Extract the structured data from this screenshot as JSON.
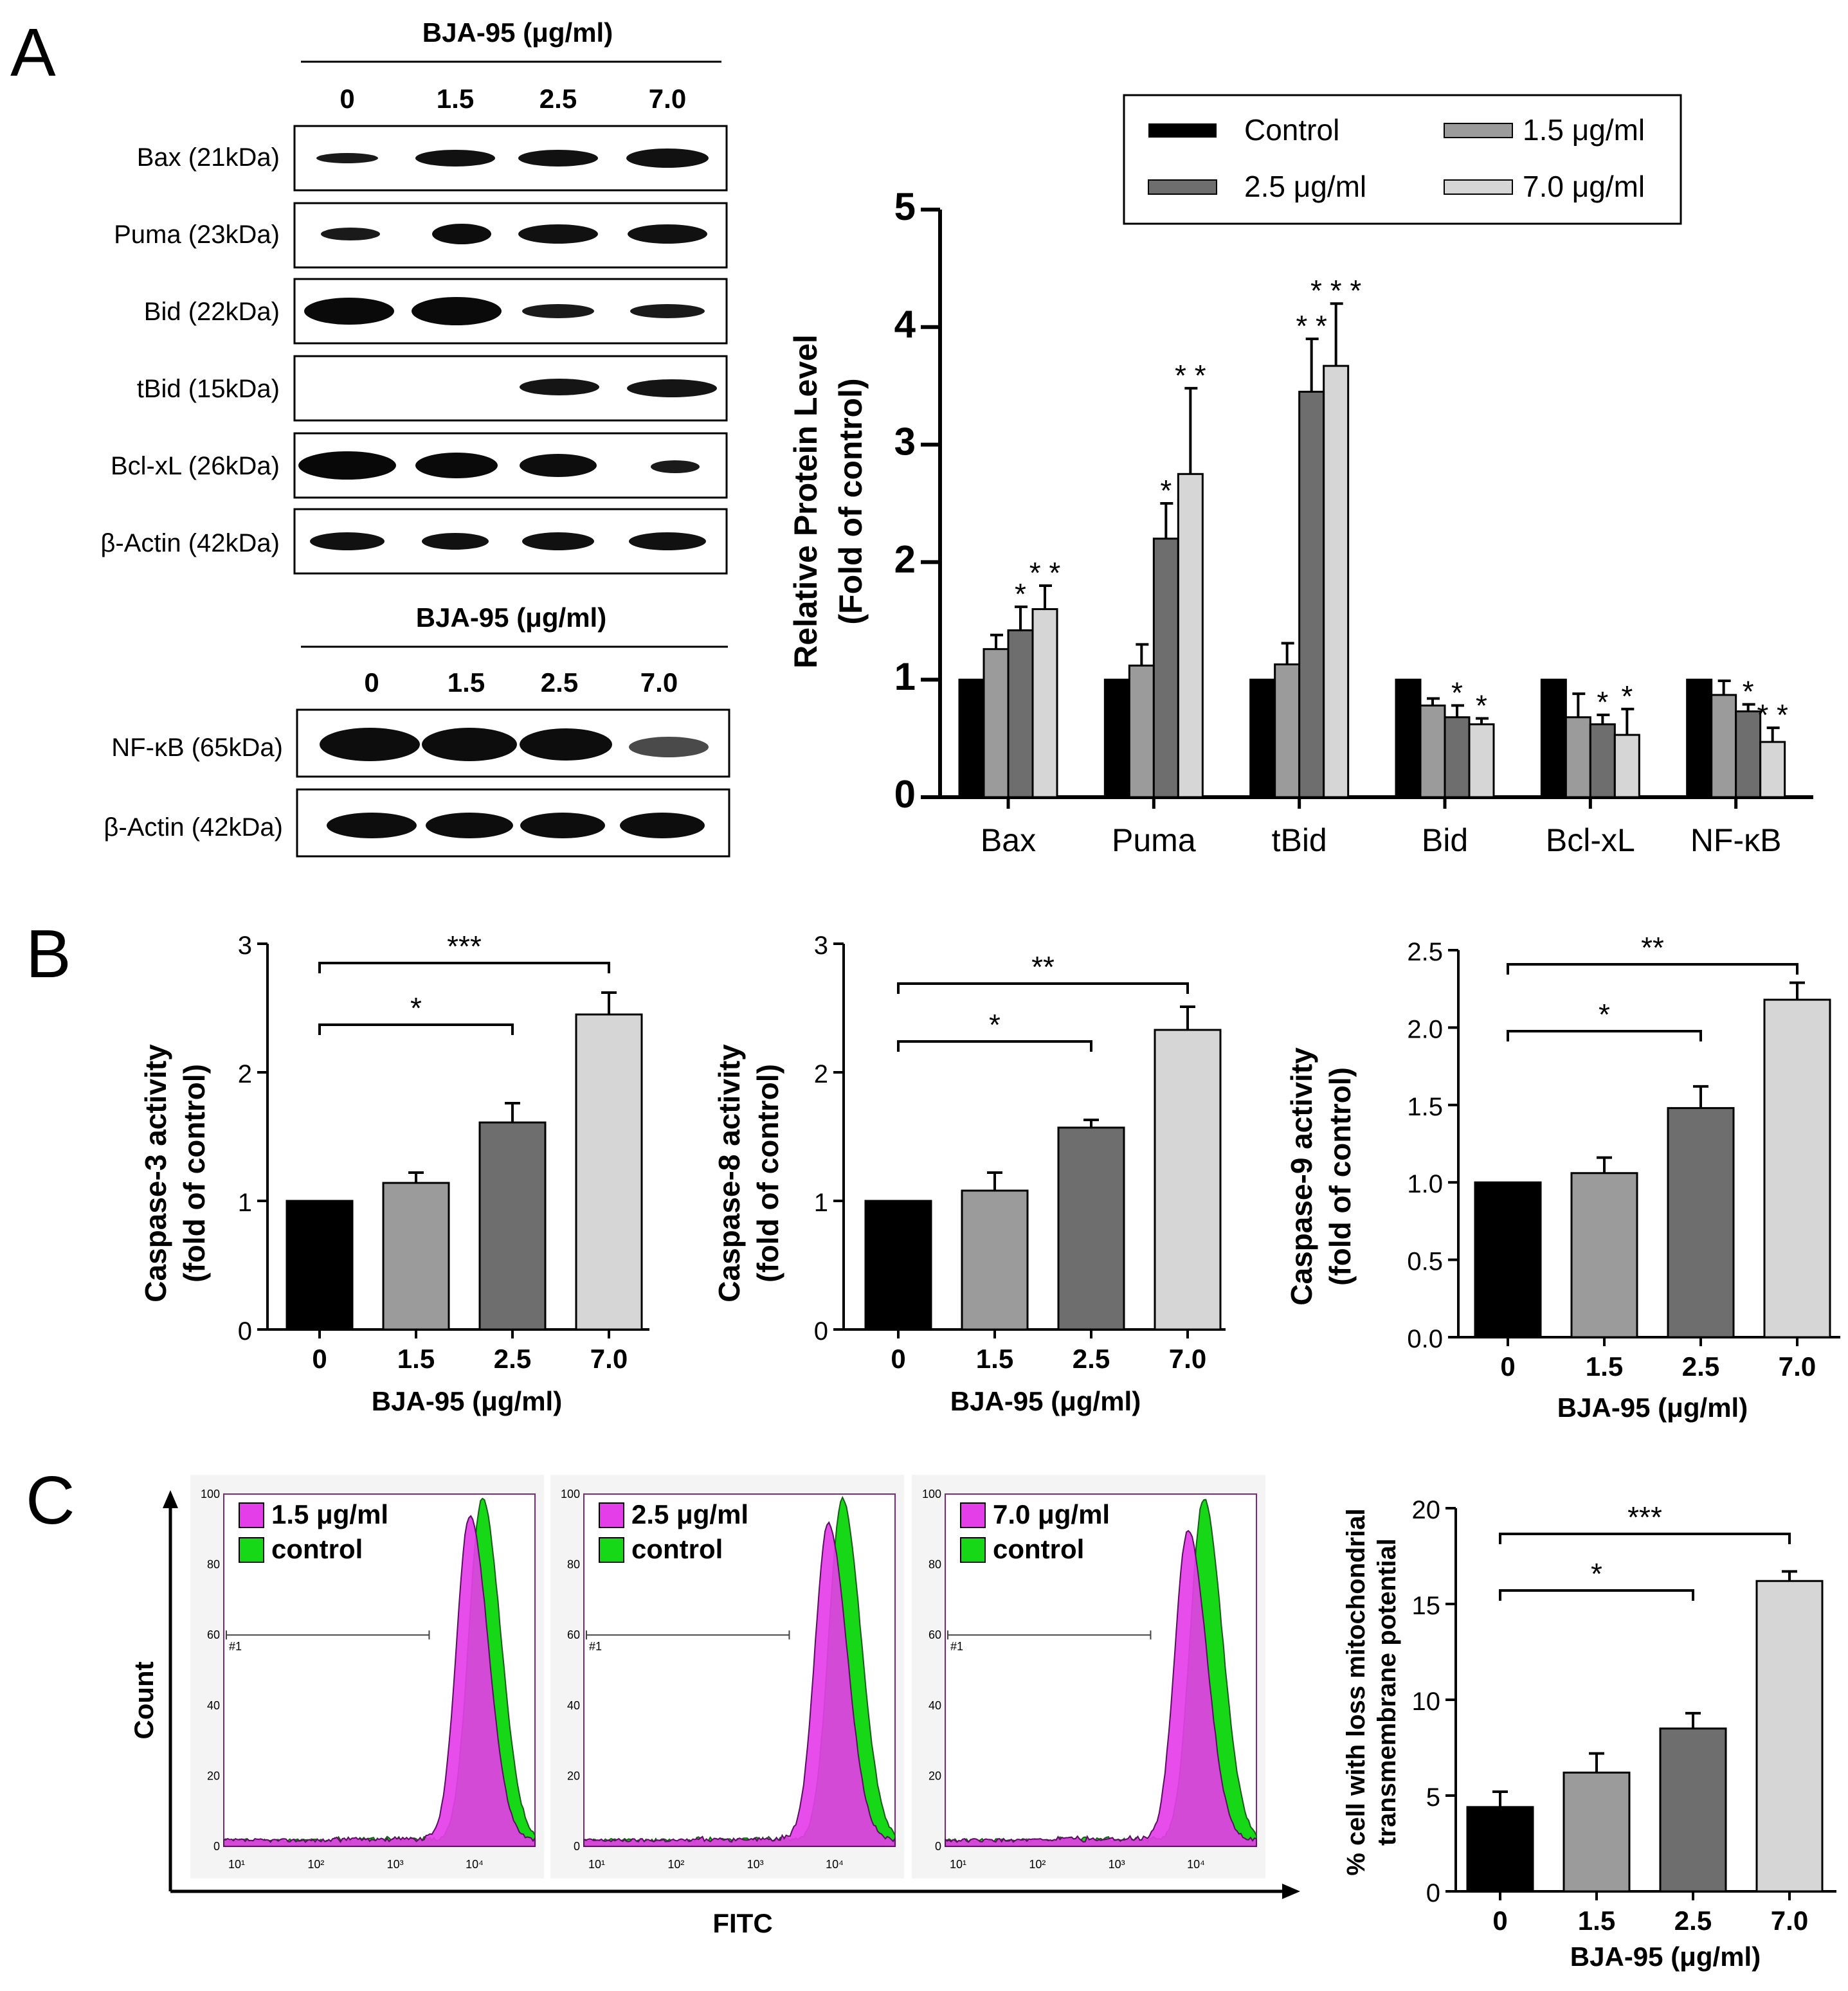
{
  "panel_labels": {
    "a": "A",
    "b": "B",
    "c": "C"
  },
  "western_blot": {
    "treatment_label": "BJA-95 (μg/ml)",
    "lanes": [
      "0",
      "1.5",
      "2.5",
      "7.0"
    ],
    "group1_rows": [
      "Bax (21kDa)",
      "Puma (23kDa)",
      "Bid (22kDa)",
      "tBid (15kDa)",
      "Bcl-xL (26kDa)",
      "β-Actin (42kDa)"
    ],
    "group2_rows": [
      "NF-κB (65kDa)",
      "β-Actin (42kDa)"
    ]
  },
  "colors": {
    "control": "#000000",
    "c15": "#9b9b9b",
    "c25": "#6e6e6e",
    "c70": "#d6d6d6",
    "magenta": "#e43ee8",
    "green": "#16d816",
    "histo_outline": "#5a1060"
  },
  "chart_data": [
    {
      "id": "protein",
      "type": "bar",
      "title": "",
      "categories": [
        "Bax",
        "Puma",
        "tBid",
        "Bid",
        "Bcl-xL",
        "NF-κB"
      ],
      "series": [
        {
          "name": "Control",
          "values": [
            1,
            1,
            1,
            1,
            1,
            1
          ],
          "errors": [
            0,
            0,
            0,
            0,
            0,
            0
          ]
        },
        {
          "name": "1.5 μg/ml",
          "values": [
            1.26,
            1.12,
            1.13,
            0.78,
            0.68,
            0.87
          ],
          "errors": [
            0.12,
            0.18,
            0.18,
            0.06,
            0.2,
            0.12
          ]
        },
        {
          "name": "2.5 μg/ml",
          "values": [
            1.42,
            2.2,
            3.45,
            0.68,
            0.62,
            0.73
          ],
          "errors": [
            0.2,
            0.3,
            0.45,
            0.1,
            0.08,
            0.06
          ]
        },
        {
          "name": "7.0 μg/ml",
          "values": [
            1.6,
            2.75,
            3.67,
            0.62,
            0.53,
            0.47
          ],
          "errors": [
            0.2,
            0.73,
            0.53,
            0.05,
            0.22,
            0.12
          ]
        }
      ],
      "significance": [
        {
          "category": "Bax",
          "series": 2,
          "label": "*"
        },
        {
          "category": "Bax",
          "series": 3,
          "label": "**"
        },
        {
          "category": "Puma",
          "series": 2,
          "label": "*"
        },
        {
          "category": "Puma",
          "series": 3,
          "label": "**"
        },
        {
          "category": "tBid",
          "series": 2,
          "label": "**"
        },
        {
          "category": "tBid",
          "series": 3,
          "label": "***"
        },
        {
          "category": "Bid",
          "series": 2,
          "label": "*"
        },
        {
          "category": "Bid",
          "series": 3,
          "label": "*"
        },
        {
          "category": "Bcl-xL",
          "series": 2,
          "label": "*"
        },
        {
          "category": "Bcl-xL",
          "series": 3,
          "label": "*"
        },
        {
          "category": "NF-κB",
          "series": 2,
          "label": "*"
        },
        {
          "category": "NF-κB",
          "series": 3,
          "label": "**"
        }
      ],
      "xlabel": "",
      "ylabel_line1": "Relative Protein Level",
      "ylabel_line2": "(Fold of control)",
      "ylim": [
        0,
        5
      ],
      "yticks": [
        "0",
        "1",
        "2",
        "3",
        "4",
        "5"
      ],
      "legend": [
        "Control",
        "1.5 μg/ml",
        "2.5 μg/ml",
        "7.0 μg/ml"
      ],
      "legend_position": "top-right"
    },
    {
      "id": "casp3",
      "type": "bar",
      "categories": [
        "0",
        "1.5",
        "2.5",
        "7.0"
      ],
      "values": [
        1.0,
        1.14,
        1.61,
        2.45
      ],
      "errors": [
        0,
        0.08,
        0.15,
        0.17
      ],
      "xlabel": "BJA-95 (μg/ml)",
      "ylabel_line1": "Caspase-3 activity",
      "ylabel_line2": "(fold of control)",
      "ylim": [
        0,
        3
      ],
      "yticks": [
        "0",
        "1",
        "2",
        "3"
      ],
      "brackets": [
        {
          "from": "0",
          "to": "2.5",
          "label": "*"
        },
        {
          "from": "0",
          "to": "7.0",
          "label": "***"
        }
      ]
    },
    {
      "id": "casp8",
      "type": "bar",
      "categories": [
        "0",
        "1.5",
        "2.5",
        "7.0"
      ],
      "values": [
        1.0,
        1.08,
        1.57,
        2.33
      ],
      "errors": [
        0,
        0.14,
        0.06,
        0.18
      ],
      "xlabel": "BJA-95 (μg/ml)",
      "ylabel_line1": "Caspase-8 activity",
      "ylabel_line2": "(fold of control)",
      "ylim": [
        0,
        3
      ],
      "yticks": [
        "0",
        "1",
        "2",
        "3"
      ],
      "brackets": [
        {
          "from": "0",
          "to": "2.5",
          "label": "*"
        },
        {
          "from": "0",
          "to": "7.0",
          "label": "**"
        }
      ]
    },
    {
      "id": "casp9",
      "type": "bar",
      "categories": [
        "0",
        "1.5",
        "2.5",
        "7.0"
      ],
      "values": [
        1.0,
        1.06,
        1.48,
        2.18
      ],
      "errors": [
        0,
        0.1,
        0.14,
        0.11
      ],
      "xlabel": "BJA-95 (μg/ml)",
      "ylabel_line1": "Caspase-9 activity",
      "ylabel_line2": "(fold of control)",
      "ylim": [
        0,
        2.5
      ],
      "yticks": [
        "0.0",
        "0.5",
        "1.0",
        "1.5",
        "2.0",
        "2.5"
      ],
      "brackets": [
        {
          "from": "0",
          "to": "2.5",
          "label": "*"
        },
        {
          "from": "0",
          "to": "7.0",
          "label": "**"
        }
      ]
    },
    {
      "id": "mmp",
      "type": "bar",
      "categories": [
        "0",
        "1.5",
        "2.5",
        "7.0"
      ],
      "values": [
        4.4,
        6.2,
        8.5,
        16.2
      ],
      "errors": [
        0.8,
        1.0,
        0.8,
        0.5
      ],
      "xlabel": "BJA-95 (μg/ml)",
      "ylabel_line1": "% cell with loss mitochondrial",
      "ylabel_line2": "transmembrane potential",
      "ylim": [
        0,
        20
      ],
      "yticks": [
        "0",
        "5",
        "10",
        "15",
        "20"
      ],
      "brackets": [
        {
          "from": "0",
          "to": "2.5",
          "label": "*"
        },
        {
          "from": "0",
          "to": "7.0",
          "label": "***"
        }
      ]
    },
    {
      "id": "flow",
      "type": "area",
      "xlabel": "FITC",
      "ylabel": "Count",
      "yticks": [
        "0",
        "20",
        "40",
        "60",
        "80",
        "100"
      ],
      "xticks": [
        "10¹",
        "10²",
        "10³",
        "10⁴"
      ],
      "gate_label": "#1",
      "legend_treated": [
        "1.5 μg/ml",
        "2.5 μg/ml",
        "7.0 μg/ml"
      ],
      "legend_control": "control"
    }
  ]
}
